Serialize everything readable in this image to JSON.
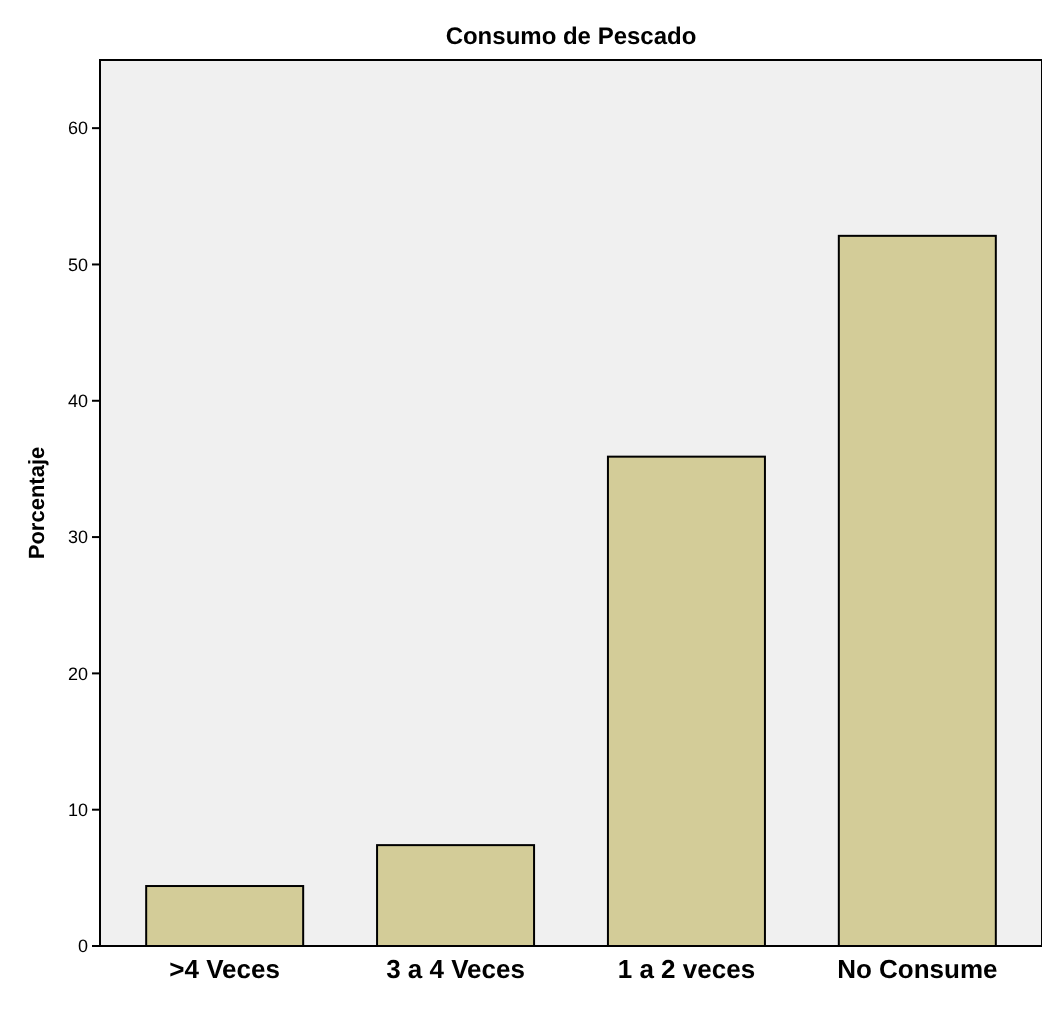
{
  "chart_data": {
    "type": "bar",
    "title": "Consumo de Pescado",
    "ylabel": "Porcentaje",
    "categories": [
      ">4 Veces",
      "3 a 4 Veces",
      "1 a 2 veces",
      "No Consume"
    ],
    "values": [
      4.4,
      7.4,
      35.9,
      52.1
    ],
    "color": "#d3cc98",
    "ylim": [
      0,
      65
    ],
    "yticks": [
      0,
      10,
      20,
      30,
      40,
      50,
      60
    ],
    "grid": false
  }
}
